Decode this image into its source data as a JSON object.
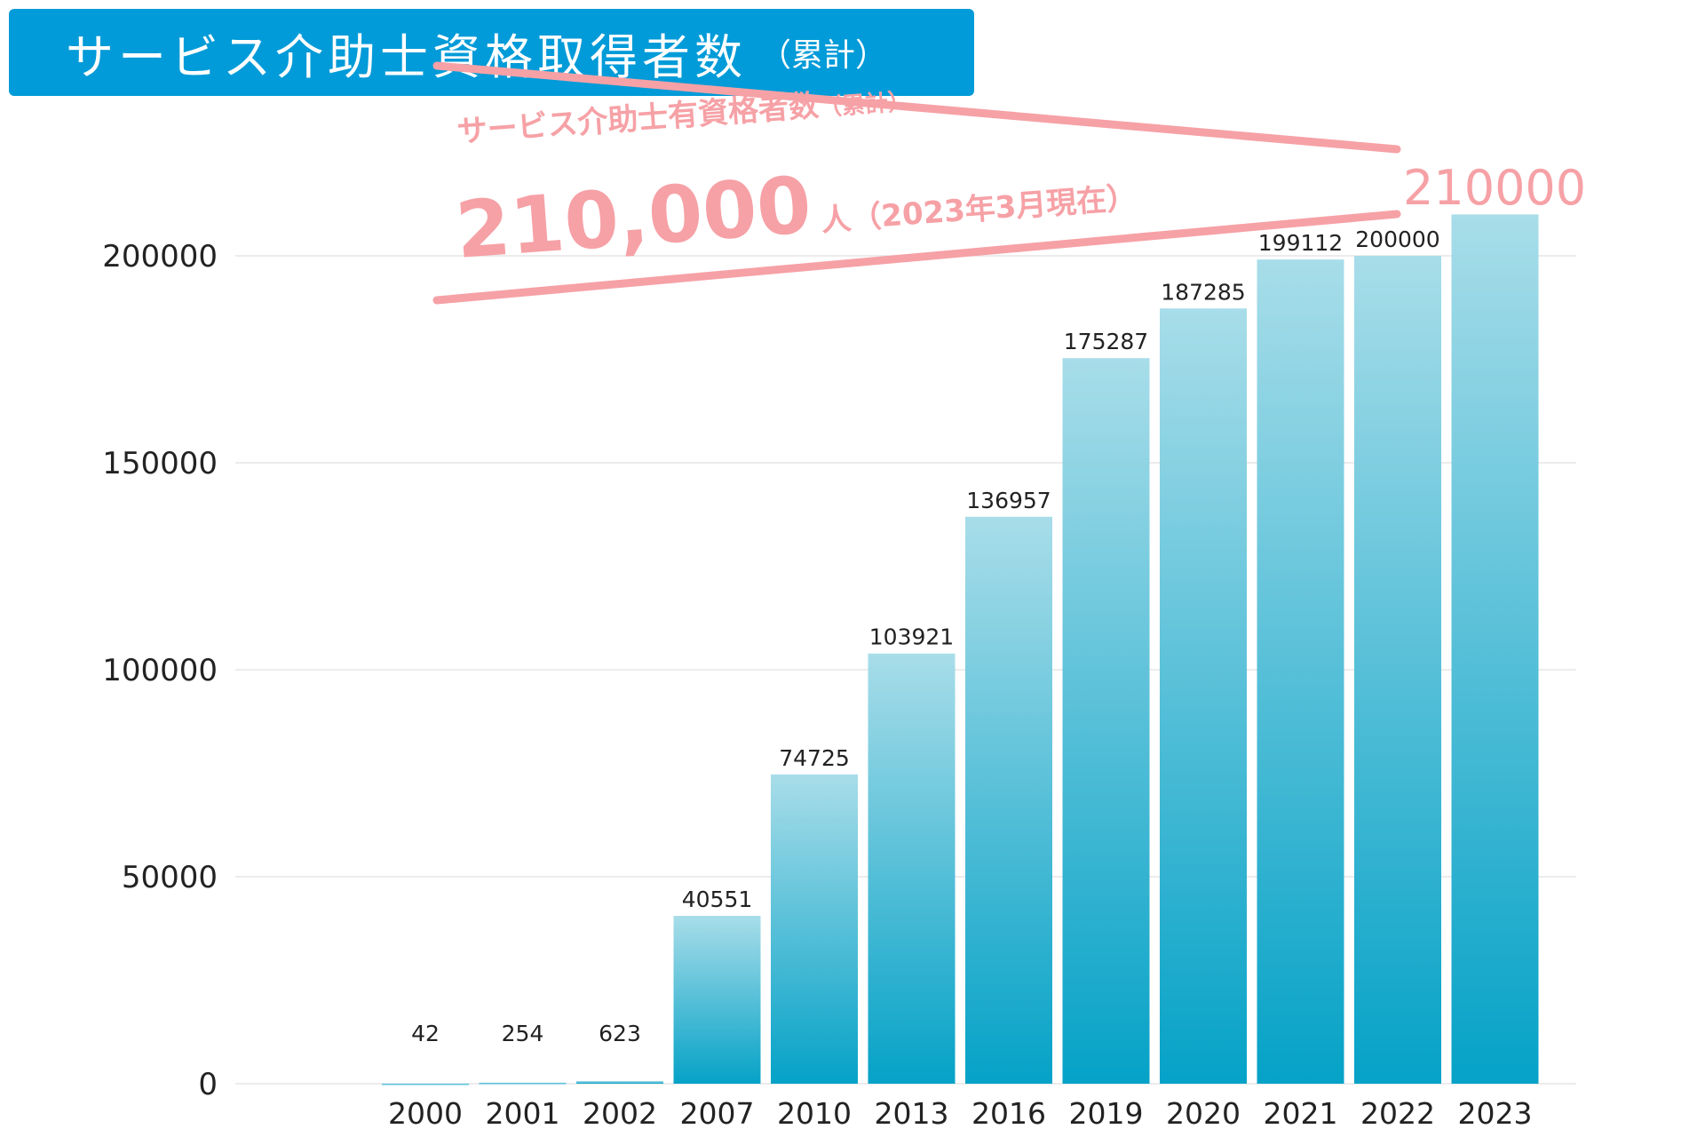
{
  "title": {
    "main": "サービス介助士資格取得者数",
    "sub": "（累計）"
  },
  "colors": {
    "banner": "#009bd8",
    "bar_top": "#a8dde9",
    "bar_bottom": "#05a2c7",
    "callout": "#f6a1a6",
    "grid": "#e6e6e6"
  },
  "callout": {
    "heading": "サービス介助士有資格者数",
    "heading_sub": "（累計）",
    "value": "210,000",
    "unit": "人",
    "date_note": "（2023年3月現在）",
    "highlight_value": "210000"
  },
  "chart_data": {
    "type": "bar",
    "title": "サービス介助士資格取得者数（累計）",
    "xlabel": "",
    "ylabel": "",
    "categories": [
      "2000",
      "2001",
      "2002",
      "2007",
      "2010",
      "2013",
      "2016",
      "2019",
      "2020",
      "2021",
      "2022",
      "2023"
    ],
    "values": [
      42,
      254,
      623,
      40551,
      74725,
      103921,
      136957,
      175287,
      187285,
      199112,
      200000,
      210000
    ],
    "value_labels": [
      "42",
      "254",
      "623",
      "40551",
      "74725",
      "103921",
      "136957",
      "175287",
      "187285",
      "199112",
      "200000",
      ""
    ],
    "ylim": [
      0,
      210000
    ],
    "yticks": [
      0,
      50000,
      100000,
      150000,
      200000
    ],
    "ytick_labels": [
      "0",
      "50000",
      "100000",
      "150000",
      "200000"
    ],
    "grid": true,
    "legend": "none"
  }
}
